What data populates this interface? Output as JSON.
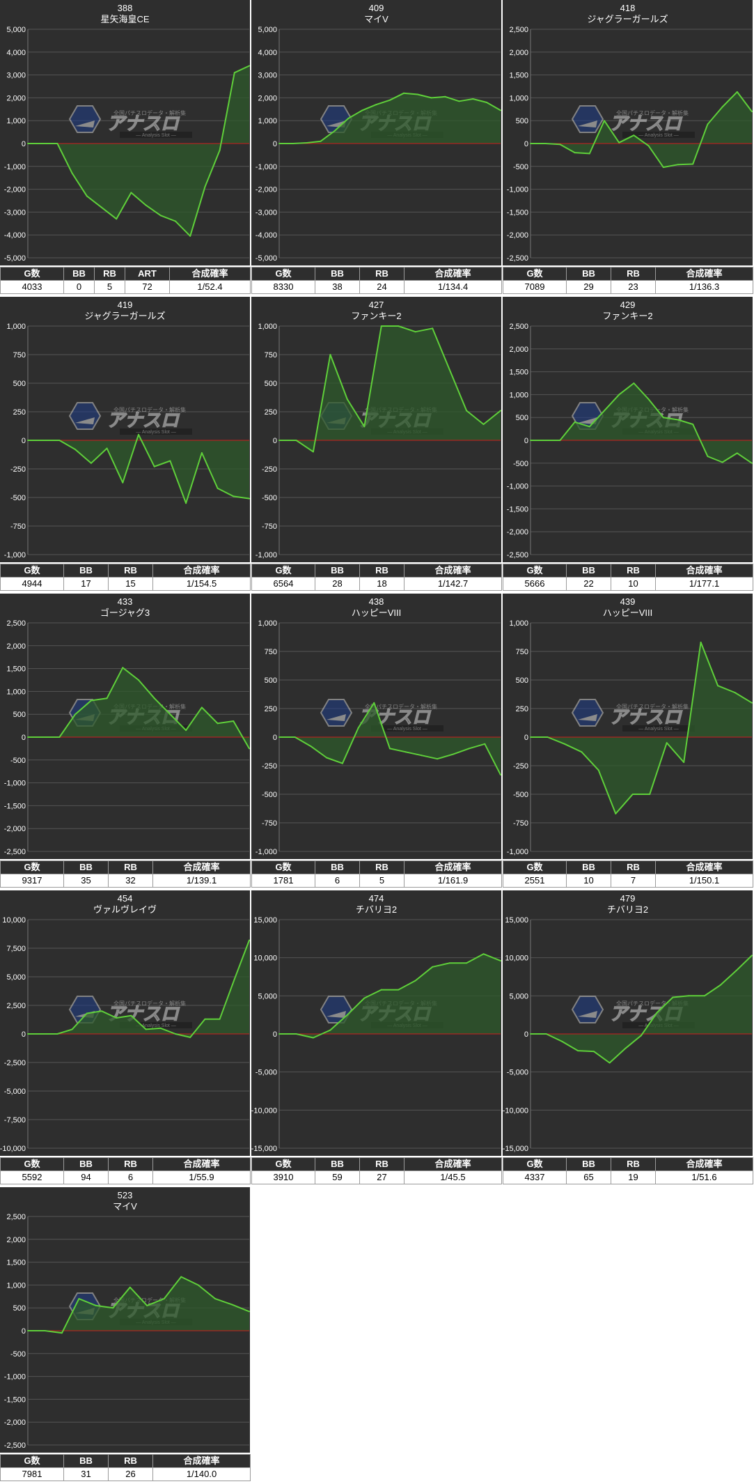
{
  "colors": {
    "panel_bg": "#2e2e2e",
    "gridline": "#555555",
    "axis_text": "#ffffff",
    "zero_line": "#cc1f1f",
    "series_line": "#5fd03a",
    "series_fill": "#2d5a2b"
  },
  "watermark": {
    "top_text": "全国パチスロデータ・解析集",
    "logo_text": "アナスロ",
    "sub_text": "— Analysis Slot —"
  },
  "chart_data": [
    {
      "type": "area",
      "machine_no": "388",
      "name": "星矢海皇CE",
      "ylim": [
        -5000,
        5000
      ],
      "yticks": [
        5000,
        4000,
        3000,
        2000,
        1000,
        0,
        -1000,
        -2000,
        -3000,
        -4000,
        -5000
      ],
      "ytick_labels": [
        "5,000",
        "4,000",
        "3,000",
        "2,000",
        "1,000",
        "0",
        "-1,000",
        "-2,000",
        "-3,000",
        "-4,000",
        "-5,000"
      ],
      "values": [
        0,
        0,
        0,
        -1300,
        -2300,
        -2800,
        -3300,
        -2150,
        -2700,
        -3150,
        -3400,
        -4050,
        -1900,
        -300,
        3100,
        3400
      ],
      "table_headers": [
        "G数",
        "BB",
        "RB",
        "ART",
        "合成確率"
      ],
      "table_values": [
        "4033",
        "0",
        "5",
        "72",
        "1/52.4"
      ]
    },
    {
      "type": "area",
      "machine_no": "409",
      "name": "マイV",
      "ylim": [
        -5000,
        5000
      ],
      "yticks": [
        5000,
        4000,
        3000,
        2000,
        1000,
        0,
        -1000,
        -2000,
        -3000,
        -4000,
        -5000
      ],
      "ytick_labels": [
        "5,000",
        "4,000",
        "3,000",
        "2,000",
        "1,000",
        "0",
        "-1,000",
        "-2,000",
        "-3,000",
        "-4,000",
        "-5,000"
      ],
      "values": [
        0,
        0,
        30,
        100,
        550,
        1100,
        1450,
        1700,
        1900,
        2200,
        2150,
        2000,
        2050,
        1850,
        1950,
        1800,
        1450
      ],
      "table_headers": [
        "G数",
        "BB",
        "RB",
        "合成確率"
      ],
      "table_values": [
        "8330",
        "38",
        "24",
        "1/134.4"
      ]
    },
    {
      "type": "area",
      "machine_no": "418",
      "name": "ジャグラーガールズ",
      "ylim": [
        -2500,
        2500
      ],
      "yticks": [
        2500,
        2000,
        1500,
        1000,
        500,
        0,
        -500,
        -1000,
        -1500,
        -2000,
        -2500
      ],
      "ytick_labels": [
        "2,500",
        "2,000",
        "1,500",
        "1,000",
        "500",
        "0",
        "-500",
        "-1,000",
        "-1,500",
        "-2,000",
        "-2,500"
      ],
      "values": [
        0,
        0,
        -20,
        -200,
        -220,
        500,
        20,
        180,
        -50,
        -520,
        -460,
        -450,
        420,
        800,
        1130,
        700
      ],
      "table_headers": [
        "G数",
        "BB",
        "RB",
        "合成確率"
      ],
      "table_values": [
        "7089",
        "29",
        "23",
        "1/136.3"
      ]
    },
    {
      "type": "area",
      "machine_no": "419",
      "name": "ジャグラーガールズ",
      "ylim": [
        -1000,
        1000
      ],
      "yticks": [
        1000,
        750,
        500,
        250,
        0,
        -250,
        -500,
        -750,
        -1000
      ],
      "ytick_labels": [
        "1,000",
        "750",
        "500",
        "250",
        "0",
        "-250",
        "-500",
        "-750",
        "-1,000"
      ],
      "values": [
        0,
        0,
        0,
        -80,
        -200,
        -70,
        -370,
        50,
        -230,
        -180,
        -550,
        -110,
        -420,
        -490,
        -510
      ],
      "table_headers": [
        "G数",
        "BB",
        "RB",
        "合成確率"
      ],
      "table_values": [
        "4944",
        "17",
        "15",
        "1/154.5"
      ]
    },
    {
      "type": "area",
      "machine_no": "427",
      "name": "ファンキー2",
      "ylim": [
        -1000,
        1000
      ],
      "yticks": [
        1000,
        750,
        500,
        250,
        0,
        -250,
        -500,
        -750,
        -1000
      ],
      "ytick_labels": [
        "1,000",
        "750",
        "500",
        "250",
        "0",
        "-250",
        "-500",
        "-750",
        "-1,000"
      ],
      "values": [
        0,
        0,
        -100,
        750,
        360,
        120,
        1000,
        1000,
        950,
        980,
        620,
        260,
        140,
        260
      ],
      "table_headers": [
        "G数",
        "BB",
        "RB",
        "合成確率"
      ],
      "table_values": [
        "6564",
        "28",
        "18",
        "1/142.7"
      ]
    },
    {
      "type": "area",
      "machine_no": "429",
      "name": "ファンキー2",
      "ylim": [
        -2500,
        2500
      ],
      "yticks": [
        2500,
        2000,
        1500,
        1000,
        500,
        0,
        -500,
        -1000,
        -1500,
        -2000,
        -2500
      ],
      "ytick_labels": [
        "2,500",
        "2,000",
        "1,500",
        "1,000",
        "500",
        "0",
        "-500",
        "-1,000",
        "-1,500",
        "-2,000",
        "-2,500"
      ],
      "values": [
        0,
        0,
        0,
        400,
        300,
        650,
        1000,
        1250,
        900,
        500,
        450,
        350,
        -350,
        -480,
        -280,
        -500
      ],
      "table_headers": [
        "G数",
        "BB",
        "RB",
        "合成確率"
      ],
      "table_values": [
        "5666",
        "22",
        "10",
        "1/177.1"
      ]
    },
    {
      "type": "area",
      "machine_no": "433",
      "name": "ゴージャグ3",
      "ylim": [
        -2500,
        2500
      ],
      "yticks": [
        2500,
        2000,
        1500,
        1000,
        500,
        0,
        -500,
        -1000,
        -1500,
        -2000,
        -2500
      ],
      "ytick_labels": [
        "2,500",
        "2,000",
        "1,500",
        "1,000",
        "500",
        "0",
        "-500",
        "-1,000",
        "-1,500",
        "-2,000",
        "-2,500"
      ],
      "values": [
        0,
        0,
        0,
        500,
        800,
        850,
        1520,
        1250,
        850,
        500,
        150,
        650,
        300,
        350,
        -250
      ],
      "table_headers": [
        "G数",
        "BB",
        "RB",
        "合成確率"
      ],
      "table_values": [
        "9317",
        "35",
        "32",
        "1/139.1"
      ]
    },
    {
      "type": "area",
      "machine_no": "438",
      "name": "ハッピーVIII",
      "ylim": [
        -1000,
        1000
      ],
      "yticks": [
        1000,
        750,
        500,
        250,
        0,
        -250,
        -500,
        -750,
        -1000
      ],
      "ytick_labels": [
        "1,000",
        "750",
        "500",
        "250",
        "0",
        "-250",
        "-500",
        "-750",
        "-1,000"
      ],
      "values": [
        0,
        0,
        -80,
        -180,
        -230,
        80,
        300,
        -100,
        -130,
        -160,
        -190,
        -150,
        -100,
        -60,
        -330
      ],
      "table_headers": [
        "G数",
        "BB",
        "RB",
        "合成確率"
      ],
      "table_values": [
        "1781",
        "6",
        "5",
        "1/161.9"
      ]
    },
    {
      "type": "area",
      "machine_no": "439",
      "name": "ハッピーVIII",
      "ylim": [
        -1000,
        1000
      ],
      "yticks": [
        1000,
        750,
        500,
        250,
        0,
        -250,
        -500,
        -750,
        -1000
      ],
      "ytick_labels": [
        "1,000",
        "750",
        "500",
        "250",
        "0",
        "-250",
        "-500",
        "-750",
        "-1,000"
      ],
      "values": [
        0,
        0,
        -60,
        -130,
        -290,
        -670,
        -500,
        -500,
        -50,
        -220,
        830,
        450,
        390,
        300
      ],
      "table_headers": [
        "G数",
        "BB",
        "RB",
        "合成確率"
      ],
      "table_values": [
        "2551",
        "10",
        "7",
        "1/150.1"
      ]
    },
    {
      "type": "area",
      "machine_no": "454",
      "name": "ヴァルヴレイヴ",
      "ylim": [
        -10000,
        10000
      ],
      "yticks": [
        10000,
        7500,
        5000,
        2500,
        0,
        -2500,
        -5000,
        -7500,
        -10000
      ],
      "ytick_labels": [
        "10,000",
        "7,500",
        "5,000",
        "2,500",
        "0",
        "-2,500",
        "-5,000",
        "-7,500",
        "-10,000"
      ],
      "values": [
        0,
        0,
        0,
        400,
        1800,
        2000,
        1400,
        1600,
        400,
        500,
        0,
        -300,
        1300,
        1300,
        4800,
        8200
      ],
      "table_headers": [
        "G数",
        "BB",
        "RB",
        "合成確率"
      ],
      "table_values": [
        "5592",
        "94",
        "6",
        "1/55.9"
      ]
    },
    {
      "type": "area",
      "machine_no": "474",
      "name": "チバリヨ2",
      "ylim": [
        -15000,
        15000
      ],
      "yticks": [
        15000,
        10000,
        5000,
        0,
        -5000,
        -10000,
        -15000
      ],
      "ytick_labels": [
        "15,000",
        "10,000",
        "5,000",
        "0",
        "-5,000",
        "-10,000",
        "-15,000"
      ],
      "values": [
        0,
        0,
        -500,
        500,
        2500,
        4700,
        5800,
        5800,
        7000,
        8800,
        9300,
        9300,
        10500,
        9600
      ],
      "table_headers": [
        "G数",
        "BB",
        "RB",
        "合成確率"
      ],
      "table_values": [
        "3910",
        "59",
        "27",
        "1/45.5"
      ]
    },
    {
      "type": "area",
      "machine_no": "479",
      "name": "チバリヨ2",
      "ylim": [
        -15000,
        15000
      ],
      "yticks": [
        15000,
        10000,
        5000,
        0,
        -5000,
        -10000,
        -15000
      ],
      "ytick_labels": [
        "15,000",
        "10,000",
        "5,000",
        "0",
        "-5,000",
        "-10,000",
        "-15,000"
      ],
      "values": [
        0,
        0,
        -1000,
        -2200,
        -2300,
        -3800,
        -1900,
        -200,
        2800,
        4800,
        5000,
        5000,
        6400,
        8300,
        10300
      ],
      "table_headers": [
        "G数",
        "BB",
        "RB",
        "合成確率"
      ],
      "table_values": [
        "4337",
        "65",
        "19",
        "1/51.6"
      ]
    },
    {
      "type": "area",
      "machine_no": "523",
      "name": "マイV",
      "ylim": [
        -2500,
        2500
      ],
      "yticks": [
        2500,
        2000,
        1500,
        1000,
        500,
        0,
        -500,
        -1000,
        -1500,
        -2000,
        -2500
      ],
      "ytick_labels": [
        "2,500",
        "2,000",
        "1,500",
        "1,000",
        "500",
        "0",
        "-500",
        "-1,000",
        "-1,500",
        "-2,000",
        "-2,500"
      ],
      "values": [
        0,
        0,
        -50,
        700,
        550,
        500,
        950,
        550,
        700,
        1180,
        1000,
        700,
        570,
        420
      ],
      "table_headers": [
        "G数",
        "BB",
        "RB",
        "合成確率"
      ],
      "table_values": [
        "7981",
        "31",
        "26",
        "1/140.0"
      ]
    }
  ]
}
